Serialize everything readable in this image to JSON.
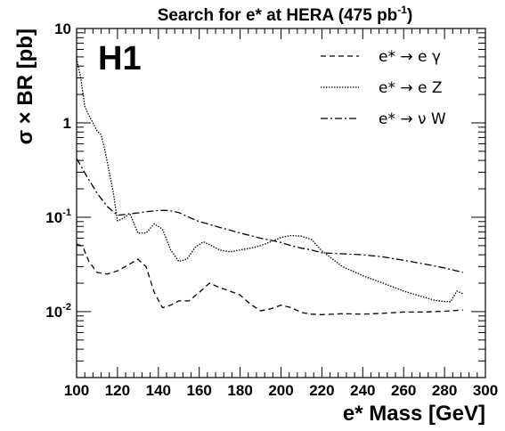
{
  "chart_data": {
    "type": "line",
    "title_main": "Search for e* at HERA (475 pb",
    "title_sup": "-1",
    "title_close": ")",
    "logo": "H1",
    "xlabel": "e* Mass [GeV]",
    "ylabel": "σ × BR [pb]",
    "xlim": [
      100,
      300
    ],
    "ylim": [
      0.002,
      10
    ],
    "yscale": "log",
    "grid": false,
    "legend_position": "top-right",
    "x_ticks": [
      "100",
      "120",
      "140",
      "160",
      "180",
      "200",
      "220",
      "240",
      "260",
      "280",
      "300"
    ],
    "y_ticks": [
      {
        "value": 10,
        "base": "10",
        "exp": ""
      },
      {
        "value": 1,
        "base": "1",
        "exp": ""
      },
      {
        "value": 0.1,
        "base": "10",
        "exp": "-1"
      },
      {
        "value": 0.01,
        "base": "10",
        "exp": "-2"
      }
    ],
    "series": [
      {
        "name": "e* → e γ",
        "dash": "6,4",
        "x": [
          100,
          103,
          106,
          110,
          115,
          120,
          125,
          130,
          134,
          138,
          142,
          146,
          150,
          155,
          160,
          165,
          170,
          175,
          180,
          185,
          190,
          195,
          200,
          205,
          210,
          215,
          220,
          230,
          240,
          250,
          260,
          270,
          280,
          289
        ],
        "y": [
          0.052,
          0.049,
          0.034,
          0.026,
          0.025,
          0.027,
          0.031,
          0.036,
          0.03,
          0.016,
          0.011,
          0.0117,
          0.013,
          0.013,
          0.016,
          0.02,
          0.018,
          0.0165,
          0.015,
          0.012,
          0.0102,
          0.0107,
          0.0117,
          0.011,
          0.0098,
          0.0094,
          0.0093,
          0.0095,
          0.0094,
          0.0096,
          0.0099,
          0.0099,
          0.0101,
          0.0104
        ]
      },
      {
        "name": "e* → e Z",
        "dash": "1.5,1.5",
        "x": [
          100,
          102,
          104,
          106,
          108,
          110,
          112,
          114,
          116,
          118,
          120,
          122,
          126,
          130,
          134,
          138,
          142,
          146,
          150,
          154,
          158,
          162,
          166,
          170,
          175,
          180,
          185,
          190,
          195,
          200,
          205,
          210,
          215,
          220,
          230,
          240,
          250,
          260,
          270,
          275,
          280,
          283,
          286,
          289
        ],
        "y": [
          4.8,
          3.0,
          1.5,
          1.2,
          1.0,
          0.82,
          0.75,
          0.5,
          0.3,
          0.18,
          0.092,
          0.095,
          0.11,
          0.068,
          0.068,
          0.085,
          0.075,
          0.045,
          0.034,
          0.036,
          0.048,
          0.055,
          0.05,
          0.045,
          0.043,
          0.045,
          0.047,
          0.05,
          0.055,
          0.061,
          0.064,
          0.063,
          0.058,
          0.044,
          0.03,
          0.024,
          0.02,
          0.0165,
          0.0142,
          0.0132,
          0.0128,
          0.0127,
          0.0165,
          0.0155
        ]
      },
      {
        "name": "e* → ν W",
        "dash": "8,3,2,3",
        "x": [
          100,
          105,
          110,
          115,
          120,
          125,
          130,
          135,
          140,
          145,
          150,
          155,
          160,
          165,
          170,
          175,
          180,
          185,
          190,
          195,
          200,
          205,
          210,
          215,
          220,
          230,
          240,
          250,
          260,
          270,
          280,
          289
        ],
        "y": [
          0.42,
          0.27,
          0.18,
          0.13,
          0.105,
          0.108,
          0.111,
          0.115,
          0.118,
          0.118,
          0.112,
          0.1,
          0.09,
          0.084,
          0.078,
          0.073,
          0.068,
          0.064,
          0.06,
          0.057,
          0.054,
          0.05,
          0.047,
          0.045,
          0.042,
          0.041,
          0.04,
          0.038,
          0.035,
          0.032,
          0.029,
          0.026
        ]
      }
    ]
  }
}
